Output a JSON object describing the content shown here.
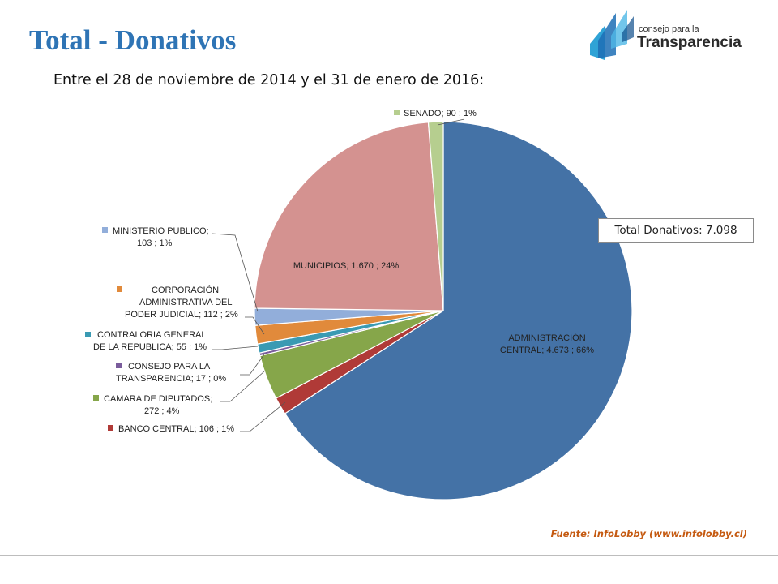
{
  "header": {
    "title": "Total - Donativos",
    "subtitle": "Entre el 28 de noviembre de 2014 y el 31 de enero de 2016:"
  },
  "logo": {
    "small_text": "consejo para la",
    "big_text": "Transparencia"
  },
  "total_box": "Total Donativos: 7.098",
  "source": "Fuente: InfoLobby  (www.infolobby.cl)",
  "colors": {
    "title": "#2E74B5",
    "source": "#C55A11"
  },
  "chart_data": {
    "type": "pie",
    "slices": [
      {
        "name": "ADMINISTRACIÓN CENTRAL",
        "value": 4673,
        "percent": "66%",
        "value_label": "4.673",
        "color": "#4472A6",
        "label_lines": [
          "ADMINISTRACIÓN",
          "CENTRAL;  4.673 ; 66%"
        ]
      },
      {
        "name": "BANCO CENTRAL",
        "value": 106,
        "percent": "1%",
        "value_label": "106",
        "color": "#B03A37",
        "label_lines": [
          "BANCO CENTRAL;  106 ; 1%"
        ]
      },
      {
        "name": "CAMARA DE DIPUTADOS",
        "value": 272,
        "percent": "4%",
        "value_label": "272",
        "color": "#86A64A",
        "label_lines": [
          "CAMARA DE DIPUTADOS;",
          "272 ; 4%"
        ]
      },
      {
        "name": "CONSEJO PARA LA TRANSPARENCIA",
        "value": 17,
        "percent": "0%",
        "value_label": "17",
        "color": "#7A5C9C",
        "label_lines": [
          "CONSEJO PARA LA",
          "TRANSPARENCIA;  17 ; 0%"
        ]
      },
      {
        "name": "CONTRALORIA GENERAL DE LA REPUBLICA",
        "value": 55,
        "percent": "1%",
        "value_label": "55",
        "color": "#3A9AB3",
        "label_lines": [
          "CONTRALORIA GENERAL",
          "DE LA REPUBLICA;  55 ; 1%"
        ]
      },
      {
        "name": "CORPORACIÓN ADMINISTRATIVA DEL PODER JUDICIAL",
        "value": 112,
        "percent": "2%",
        "value_label": "112",
        "color": "#E18A3B",
        "label_lines": [
          "CORPORACIÓN",
          "ADMINISTRATIVA DEL",
          "PODER JUDICIAL;  112 ; 2%"
        ]
      },
      {
        "name": "MINISTERIO PUBLICO",
        "value": 103,
        "percent": "1%",
        "value_label": "103",
        "color": "#92AEDA",
        "label_lines": [
          "MINISTERIO PUBLICO;",
          "103 ; 1%"
        ]
      },
      {
        "name": "MUNICIPIOS",
        "value": 1670,
        "percent": "24%",
        "value_label": "1.670",
        "color": "#D49290",
        "label_lines": [
          "MUNICIPIOS;  1.670 ; 24%"
        ]
      },
      {
        "name": "SENADO",
        "value": 90,
        "percent": "1%",
        "value_label": "90",
        "color": "#B6CE8F",
        "label_lines": [
          "SENADO;  90 ; 1%"
        ]
      }
    ],
    "total": 7098
  }
}
